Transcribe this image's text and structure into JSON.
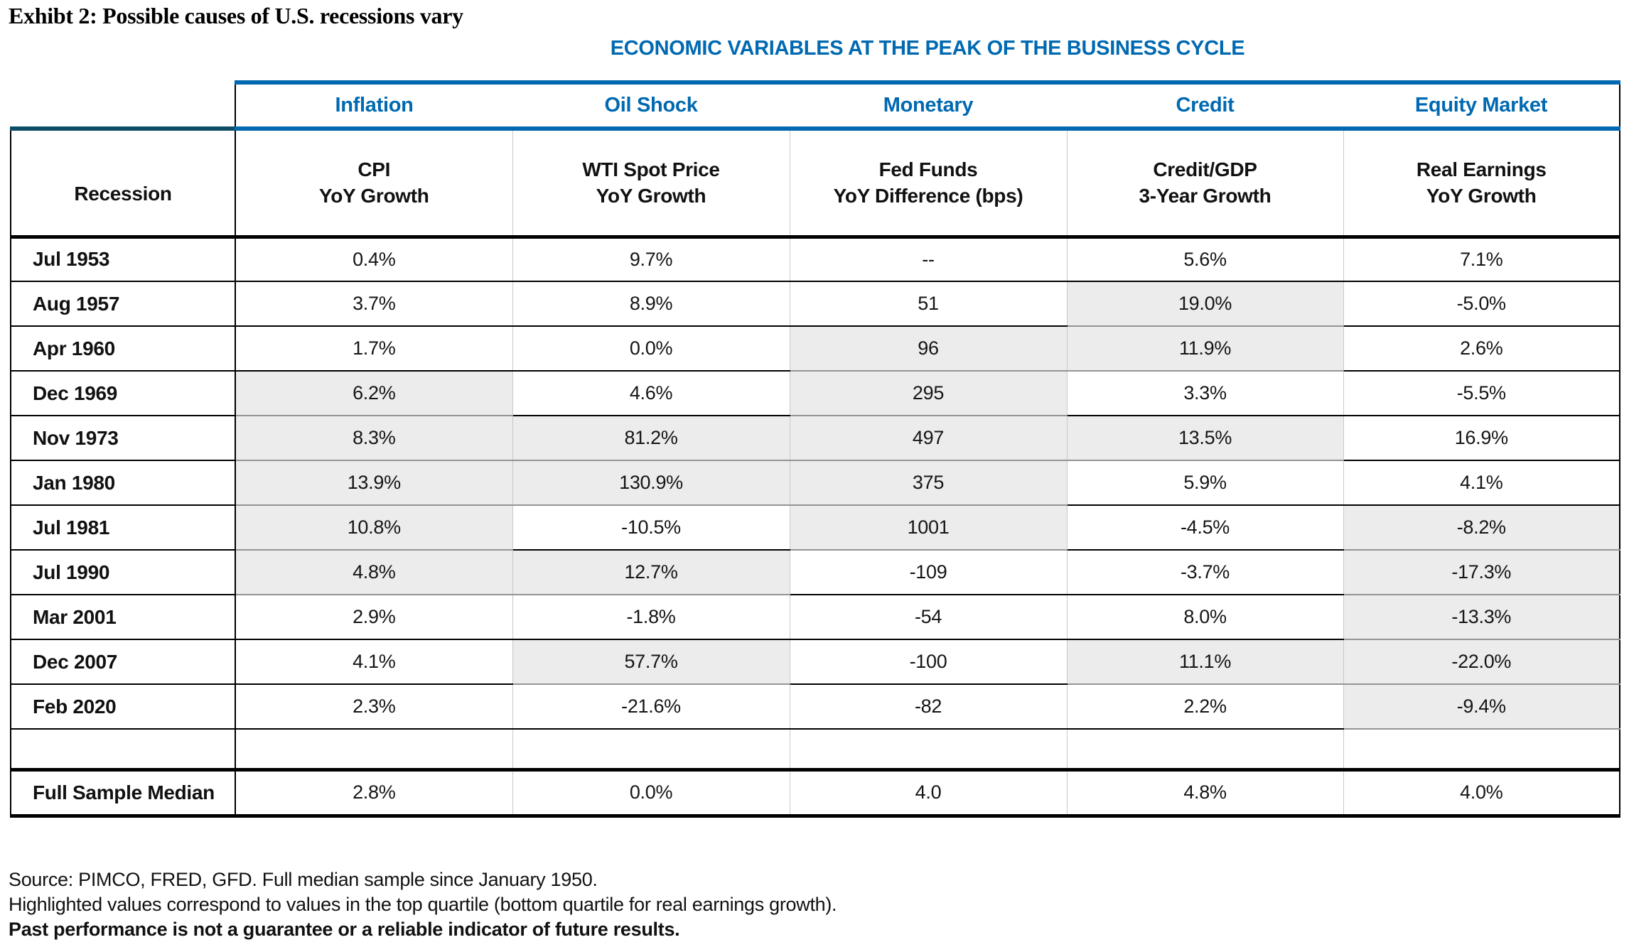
{
  "title": "Exhibt 2: Possible causes of U.S. recessions vary",
  "chart_data": {
    "type": "table",
    "title": "Exhibt 2: Possible causes of U.S. recessions vary",
    "banner": "ECONOMIC VARIABLES AT THE PEAK OF THE BUSINESS CYCLE",
    "group_headers": [
      "Inflation",
      "Oil Shock",
      "Monetary",
      "Credit",
      "Equity Market"
    ],
    "row_header": "Recession",
    "column_headers": [
      {
        "line1": "CPI",
        "line2": "YoY Growth"
      },
      {
        "line1": "WTI Spot Price",
        "line2": "YoY Growth"
      },
      {
        "line1": "Fed Funds",
        "line2": "YoY Difference (bps)"
      },
      {
        "line1": "Credit/GDP",
        "line2": "3-Year Growth"
      },
      {
        "line1": "Real Earnings",
        "line2": "YoY Growth"
      }
    ],
    "rows": [
      {
        "label": "Jul 1953",
        "values": [
          "0.4%",
          "9.7%",
          "--",
          "5.6%",
          "7.1%"
        ],
        "highlight": [
          false,
          false,
          false,
          false,
          false
        ]
      },
      {
        "label": "Aug 1957",
        "values": [
          "3.7%",
          "8.9%",
          "51",
          "19.0%",
          "-5.0%"
        ],
        "highlight": [
          false,
          false,
          false,
          true,
          false
        ]
      },
      {
        "label": "Apr 1960",
        "values": [
          "1.7%",
          "0.0%",
          "96",
          "11.9%",
          "2.6%"
        ],
        "highlight": [
          false,
          false,
          true,
          true,
          false
        ]
      },
      {
        "label": "Dec 1969",
        "values": [
          "6.2%",
          "4.6%",
          "295",
          "3.3%",
          "-5.5%"
        ],
        "highlight": [
          true,
          false,
          true,
          false,
          false
        ]
      },
      {
        "label": "Nov 1973",
        "values": [
          "8.3%",
          "81.2%",
          "497",
          "13.5%",
          "16.9%"
        ],
        "highlight": [
          true,
          true,
          true,
          true,
          false
        ]
      },
      {
        "label": "Jan 1980",
        "values": [
          "13.9%",
          "130.9%",
          "375",
          "5.9%",
          "4.1%"
        ],
        "highlight": [
          true,
          true,
          true,
          false,
          false
        ]
      },
      {
        "label": "Jul 1981",
        "values": [
          "10.8%",
          "-10.5%",
          "1001",
          "-4.5%",
          "-8.2%"
        ],
        "highlight": [
          true,
          false,
          true,
          false,
          true
        ]
      },
      {
        "label": "Jul 1990",
        "values": [
          "4.8%",
          "12.7%",
          "-109",
          "-3.7%",
          "-17.3%"
        ],
        "highlight": [
          true,
          true,
          false,
          false,
          true
        ]
      },
      {
        "label": "Mar 2001",
        "values": [
          "2.9%",
          "-1.8%",
          "-54",
          "8.0%",
          "-13.3%"
        ],
        "highlight": [
          false,
          false,
          false,
          false,
          true
        ]
      },
      {
        "label": "Dec 2007",
        "values": [
          "4.1%",
          "57.7%",
          "-100",
          "11.1%",
          "-22.0%"
        ],
        "highlight": [
          false,
          true,
          false,
          true,
          true
        ]
      },
      {
        "label": "Feb 2020",
        "values": [
          "2.3%",
          "-21.6%",
          "-82",
          "2.2%",
          "-9.4%"
        ],
        "highlight": [
          false,
          false,
          false,
          false,
          true
        ]
      }
    ],
    "median_row": {
      "label": "Full Sample Median",
      "values": [
        "2.8%",
        "0.0%",
        "4.0",
        "4.8%",
        "4.0%"
      ]
    }
  },
  "footnotes": {
    "source": "Source: PIMCO, FRED, GFD. Full median sample since January 1950.",
    "highlight": "Highlighted values correspond to values in the top quartile (bottom quartile for real earnings growth).",
    "disclaimer": "Past performance is not a guarantee or a reliable indicator of future results."
  },
  "colors": {
    "header_blue": "#0069B1",
    "row_header_teal": "#0E4D66",
    "highlight_grey": "#ECECEC"
  }
}
